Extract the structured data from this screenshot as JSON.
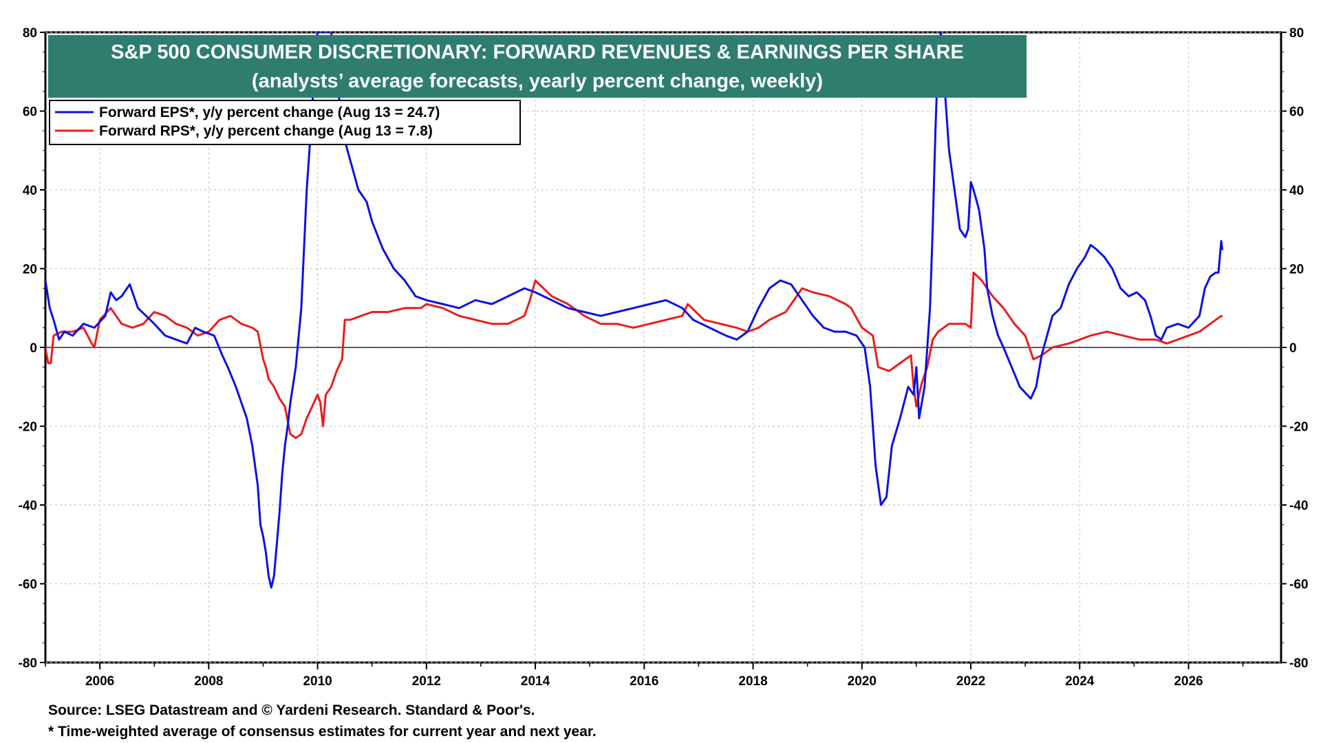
{
  "chart_data": {
    "type": "line",
    "title": "S&P 500 CONSUMER DISCRETIONARY: FORWARD REVENUES & EARNINGS PER SHARE",
    "subtitle": "(analysts’ average forecasts, yearly percent change, weekly)",
    "xlim": [
      2005.0,
      2027.7
    ],
    "ylim": [
      -80,
      80
    ],
    "x_ticks": [
      "2006",
      "2008",
      "2010",
      "2012",
      "2014",
      "2016",
      "2018",
      "2020",
      "2022",
      "2024",
      "2026"
    ],
    "y_ticks_left": [
      "80",
      "60",
      "40",
      "20",
      "0",
      "-20",
      "-40",
      "-60",
      "-80"
    ],
    "y_ticks_right": [
      "80",
      "60",
      "40",
      "20",
      "0",
      "-20",
      "-40",
      "-60",
      "-80"
    ],
    "grid": true,
    "legend_position": "top-left",
    "series": [
      {
        "name": "Forward EPS*, y/y percent change (Aug 13 = 24.7)",
        "color": "#0a10e6",
        "x": [
          2005.0,
          2005.08,
          2005.15,
          2005.25,
          2005.35,
          2005.5,
          2005.7,
          2005.9,
          2006.1,
          2006.2,
          2006.3,
          2006.4,
          2006.55,
          2006.7,
          2006.85,
          2007.0,
          2007.2,
          2007.4,
          2007.6,
          2007.75,
          2007.9,
          2008.1,
          2008.25,
          2008.35,
          2008.5,
          2008.6,
          2008.7,
          2008.8,
          2008.9,
          2008.95,
          2009.0,
          2009.05,
          2009.1,
          2009.15,
          2009.2,
          2009.25,
          2009.3,
          2009.35,
          2009.4,
          2009.45,
          2009.5,
          2009.6,
          2009.7,
          2009.8,
          2009.9,
          2009.95,
          2010.0,
          2010.05,
          2010.1,
          2010.15,
          2010.25,
          2010.35,
          2010.45,
          2010.55,
          2010.65,
          2010.75,
          2010.9,
          2011.0,
          2011.2,
          2011.4,
          2011.6,
          2011.8,
          2012.0,
          2012.3,
          2012.6,
          2012.9,
          2013.2,
          2013.5,
          2013.8,
          2014.0,
          2014.3,
          2014.6,
          2014.9,
          2015.2,
          2015.5,
          2015.8,
          2016.1,
          2016.4,
          2016.7,
          2016.9,
          2017.2,
          2017.5,
          2017.7,
          2017.9,
          2018.1,
          2018.3,
          2018.5,
          2018.7,
          2018.9,
          2019.1,
          2019.3,
          2019.5,
          2019.7,
          2019.9,
          2020.05,
          2020.15,
          2020.25,
          2020.35,
          2020.45,
          2020.55,
          2020.7,
          2020.85,
          2020.95,
          2021.0,
          2021.05,
          2021.15,
          2021.25,
          2021.3,
          2021.35,
          2021.4,
          2021.45,
          2021.5,
          2021.55,
          2021.6,
          2021.7,
          2021.8,
          2021.9,
          2021.95,
          2022.0,
          2022.05,
          2022.15,
          2022.25,
          2022.3,
          2022.4,
          2022.5,
          2022.6,
          2022.75,
          2022.9,
          2023.1,
          2023.2,
          2023.3,
          2023.4,
          2023.5,
          2023.65,
          2023.8,
          2023.95,
          2024.1,
          2024.2,
          2024.3,
          2024.45,
          2024.6,
          2024.75,
          2024.9,
          2025.05,
          2025.2,
          2025.3,
          2025.4,
          2025.5,
          2025.6,
          2025.8,
          2026.0,
          2026.2,
          2026.3,
          2026.4,
          2026.5,
          2026.55,
          2026.6,
          2026.62
        ],
        "values": [
          17,
          10,
          7,
          2,
          4,
          3,
          6,
          5,
          8,
          14,
          12,
          13,
          16,
          10,
          8,
          6,
          3,
          2,
          1,
          5,
          4,
          3,
          -2,
          -5,
          -10,
          -14,
          -18,
          -25,
          -35,
          -45,
          -48,
          -52,
          -58,
          -61,
          -58,
          -50,
          -42,
          -32,
          -25,
          -20,
          -14,
          -5,
          10,
          40,
          60,
          75,
          80,
          80,
          80,
          80,
          80,
          70,
          55,
          50,
          45,
          40,
          37,
          32,
          25,
          20,
          17,
          13,
          12,
          11,
          10,
          12,
          11,
          13,
          15,
          14,
          12,
          10,
          9,
          8,
          9,
          10,
          11,
          12,
          10,
          7,
          5,
          3,
          2,
          4,
          10,
          15,
          17,
          16,
          12,
          8,
          5,
          4,
          4,
          3,
          0,
          -10,
          -30,
          -40,
          -38,
          -25,
          -18,
          -10,
          -12,
          -5,
          -18,
          -10,
          10,
          30,
          55,
          75,
          80,
          70,
          60,
          50,
          40,
          30,
          28,
          30,
          42,
          40,
          35,
          25,
          15,
          8,
          3,
          0,
          -5,
          -10,
          -13,
          -10,
          -2,
          3,
          8,
          10,
          16,
          20,
          23,
          26,
          25,
          23,
          20,
          15,
          13,
          14,
          12,
          8,
          3,
          2,
          5,
          6,
          5,
          8,
          15,
          18,
          19,
          19,
          27,
          24.7
        ],
        "visible_range": []
      },
      {
        "name": "Forward RPS*, y/y percent change (Aug 13 = 7.8)",
        "color": "#ed1b1b",
        "x": [
          2005.0,
          2005.05,
          2005.1,
          2005.15,
          2005.3,
          2005.5,
          2005.7,
          2005.85,
          2005.9,
          2006.0,
          2006.2,
          2006.4,
          2006.6,
          2006.8,
          2007.0,
          2007.2,
          2007.4,
          2007.6,
          2007.8,
          2008.0,
          2008.2,
          2008.4,
          2008.6,
          2008.8,
          2008.9,
          2009.0,
          2009.05,
          2009.1,
          2009.2,
          2009.3,
          2009.4,
          2009.5,
          2009.6,
          2009.7,
          2009.8,
          2009.9,
          2010.0,
          2010.05,
          2010.1,
          2010.15,
          2010.25,
          2010.35,
          2010.45,
          2010.5,
          2010.6,
          2010.8,
          2011.0,
          2011.3,
          2011.6,
          2011.9,
          2012.0,
          2012.3,
          2012.6,
          2012.9,
          2013.2,
          2013.5,
          2013.8,
          2013.9,
          2014.0,
          2014.3,
          2014.6,
          2014.9,
          2015.2,
          2015.5,
          2015.8,
          2016.1,
          2016.4,
          2016.7,
          2016.8,
          2017.1,
          2017.4,
          2017.7,
          2017.9,
          2018.1,
          2018.3,
          2018.6,
          2018.9,
          2019.1,
          2019.4,
          2019.7,
          2019.8,
          2020.0,
          2020.1,
          2020.2,
          2020.3,
          2020.5,
          2020.7,
          2020.9,
          2020.95,
          2021.0,
          2021.1,
          2021.2,
          2021.3,
          2021.4,
          2021.6,
          2021.9,
          2022.0,
          2022.05,
          2022.2,
          2022.4,
          2022.6,
          2022.8,
          2023.0,
          2023.15,
          2023.3,
          2023.5,
          2023.8,
          2024.0,
          2024.2,
          2024.5,
          2024.8,
          2025.1,
          2025.4,
          2025.6,
          2025.8,
          2026.0,
          2026.2,
          2026.4,
          2026.6,
          2026.62
        ],
        "values": [
          0,
          -4,
          -4,
          3,
          4,
          4,
          5,
          1,
          0,
          7,
          10,
          6,
          5,
          6,
          9,
          8,
          6,
          5,
          3,
          4,
          7,
          8,
          6,
          5,
          4,
          -3,
          -5,
          -8,
          -10,
          -13,
          -15,
          -22,
          -23,
          -22,
          -18,
          -15,
          -12,
          -14,
          -20,
          -12,
          -10,
          -6,
          -3,
          7,
          7,
          8,
          9,
          9,
          10,
          10,
          11,
          10,
          8,
          7,
          6,
          6,
          8,
          12,
          17,
          13,
          11,
          8,
          6,
          6,
          5,
          6,
          7,
          8,
          11,
          7,
          6,
          5,
          4,
          5,
          7,
          9,
          15,
          14,
          13,
          11,
          10,
          5,
          4,
          3,
          -5,
          -6,
          -4,
          -2,
          -10,
          -15,
          -9,
          -5,
          2,
          4,
          6,
          6,
          5,
          19,
          17,
          13,
          10,
          6,
          3,
          -3,
          -2,
          0,
          1,
          2,
          3,
          4,
          3,
          2,
          2,
          1,
          2,
          3,
          4,
          6,
          8,
          7.8
        ]
      }
    ],
    "notes": [
      "Source: LSEG Datastream and © Yardeni Research. Standard & Poor's.",
      "* Time-weighted average of consensus estimates for current year and next year."
    ]
  },
  "colors": {
    "title_band": "#2e7d6f",
    "eps_line": "#0a10e6",
    "rps_line": "#ed1b1b",
    "grid": "#c8c8c8"
  }
}
